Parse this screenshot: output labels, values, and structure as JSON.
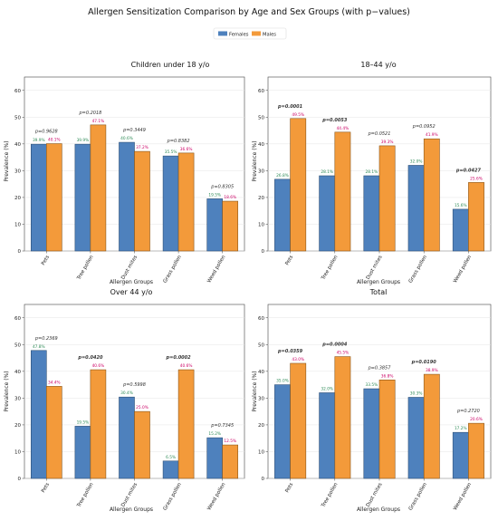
{
  "figure": {
    "title": "Allergen Sensitization Comparison by Age and Sex Groups (with p−values)",
    "legend": [
      {
        "label": "Females",
        "color": "#4e81bd"
      },
      {
        "label": "Males",
        "color": "#f39a3a"
      }
    ],
    "legend_placement": "top-center"
  },
  "colors": {
    "female": "#4e81bd",
    "male": "#f39a3a",
    "female_label": "#2e8b57",
    "male_label": "#cc0066",
    "pvalue": "#333333"
  },
  "chart_data": [
    {
      "type": "bar",
      "title": "Children under 18 y/o",
      "xlabel": "Allergen Groups",
      "ylabel": "Prevalence (%)",
      "ylim": [
        0,
        65
      ],
      "yticks": [
        0,
        10,
        20,
        30,
        40,
        50,
        60
      ],
      "grid": true,
      "categories": [
        "Pets",
        "Tree pollen",
        "Dust mites",
        "Grass pollen",
        "Weed pollen"
      ],
      "series": [
        {
          "name": "Females",
          "values": [
            39.9,
            39.9,
            40.6,
            35.5,
            19.5
          ],
          "labels": [
            "39.9%",
            "39.9%",
            "40.6%",
            "35.5%",
            "19.5%"
          ]
        },
        {
          "name": "Males",
          "values": [
            40.1,
            47.1,
            37.2,
            36.6,
            18.6
          ],
          "labels": [
            "40.1%",
            "47.1%",
            "37.2%",
            "36.6%",
            "18.6%"
          ]
        }
      ],
      "pvalues": [
        "p=0.9628",
        "p=0.2018",
        "p=0.3449",
        "p=0.8382",
        "p=0.8305"
      ],
      "significant": [
        false,
        false,
        false,
        false,
        false
      ]
    },
    {
      "type": "bar",
      "title": "18–44 y/o",
      "xlabel": "Allergen Groups",
      "ylabel": "Prevalence (%)",
      "ylim": [
        0,
        65
      ],
      "yticks": [
        0,
        10,
        20,
        30,
        40,
        50,
        60
      ],
      "grid": true,
      "categories": [
        "Pets",
        "Tree pollen",
        "Dust mites",
        "Grass pollen",
        "Weed pollen"
      ],
      "series": [
        {
          "name": "Females",
          "values": [
            26.8,
            28.1,
            28.1,
            32.0,
            15.6
          ],
          "labels": [
            "26.8%",
            "28.1%",
            "28.1%",
            "32.0%",
            "15.6%"
          ]
        },
        {
          "name": "Males",
          "values": [
            49.5,
            44.4,
            39.3,
            41.9,
            25.6
          ],
          "labels": [
            "49.5%",
            "44.4%",
            "39.3%",
            "41.9%",
            "25.6%"
          ]
        }
      ],
      "pvalues": [
        "p=0.0001",
        "p=0.0053",
        "p=0.0521",
        "p=0.0952",
        "p=0.0427"
      ],
      "significant": [
        true,
        true,
        false,
        false,
        true
      ]
    },
    {
      "type": "bar",
      "title": "Over 44 y/o",
      "xlabel": "Allergen Groups",
      "ylabel": "Prevalence (%)",
      "ylim": [
        0,
        65
      ],
      "yticks": [
        0,
        10,
        20,
        30,
        40,
        50,
        60
      ],
      "grid": true,
      "categories": [
        "Pets",
        "Tree pollen",
        "Dust mites",
        "Grass pollen",
        "Weed pollen"
      ],
      "series": [
        {
          "name": "Females",
          "values": [
            47.8,
            19.5,
            30.4,
            6.5,
            15.2
          ],
          "labels": [
            "47.8%",
            "19.5%",
            "30.4%",
            "6.5%",
            "15.2%"
          ]
        },
        {
          "name": "Males",
          "values": [
            34.4,
            40.6,
            25.0,
            40.6,
            12.5
          ],
          "labels": [
            "34.4%",
            "40.6%",
            "25.0%",
            "40.6%",
            "12.5%"
          ]
        }
      ],
      "pvalues": [
        "p=0.2369",
        "p=0.0420",
        "p=0.5998",
        "p=0.0002",
        "p=0.7345"
      ],
      "significant": [
        false,
        true,
        false,
        true,
        false
      ]
    },
    {
      "type": "bar",
      "title": "Total",
      "xlabel": "Allergen Groups",
      "ylabel": "Prevalence (%)",
      "ylim": [
        0,
        65
      ],
      "yticks": [
        0,
        10,
        20,
        30,
        40,
        50,
        60
      ],
      "grid": true,
      "categories": [
        "Pets",
        "Tree pollen",
        "Dust mites",
        "Grass pollen",
        "Weed pollen"
      ],
      "series": [
        {
          "name": "Females",
          "values": [
            35.0,
            32.0,
            33.5,
            30.3,
            17.2
          ],
          "labels": [
            "35.0%",
            "32.0%",
            "33.5%",
            "30.3%",
            "17.2%"
          ]
        },
        {
          "name": "Males",
          "values": [
            43.0,
            45.5,
            36.8,
            38.9,
            20.6
          ],
          "labels": [
            "43.0%",
            "45.5%",
            "36.8%",
            "38.9%",
            "20.6%"
          ]
        }
      ],
      "pvalues": [
        "p=0.0359",
        "p=0.0004",
        "p=0.3857",
        "p=0.0190",
        "p=0.2720"
      ],
      "significant": [
        true,
        true,
        false,
        true,
        false
      ]
    }
  ]
}
